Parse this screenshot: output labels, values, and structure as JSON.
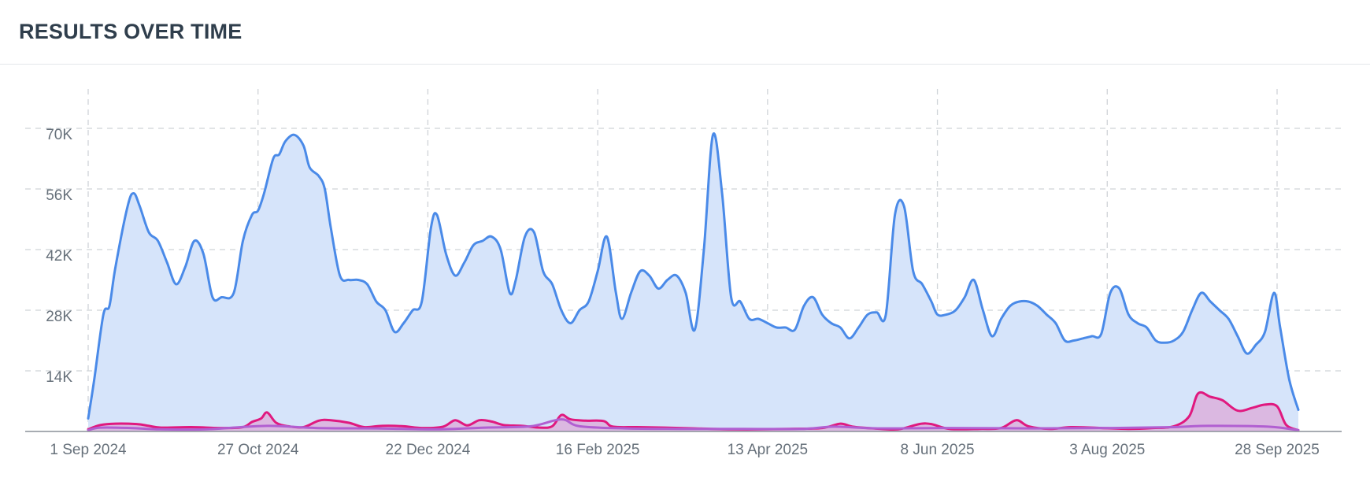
{
  "header": {
    "title": "RESULTS OVER TIME"
  },
  "colors": {
    "series_blue": "#4a8ae8",
    "series_blue_fill": "#d6e4fa",
    "series_pink": "#e0197f",
    "series_pink_fill": "#dcb3de",
    "series_purple": "#b15fd1",
    "grid": "#cfd3d8",
    "axis": "#8a9199",
    "tick_text": "#66707a"
  },
  "chart_data": {
    "type": "area",
    "title": "",
    "xlabel": "",
    "ylabel": "",
    "x_start": "2024-09-01",
    "x_end": "2025-10-10",
    "ylim": [
      0,
      75000
    ],
    "grid": true,
    "legend": "none",
    "x_ticks": [
      "1 Sep 2024",
      "27 Oct 2024",
      "22 Dec 2024",
      "16 Feb 2025",
      "13 Apr 2025",
      "8 Jun 2025",
      "3 Aug 2025",
      "28 Sep 2025"
    ],
    "y_ticks": [
      "14K",
      "28K",
      "42K",
      "56K",
      "70K"
    ],
    "y_tick_values": [
      14000,
      28000,
      42000,
      56000,
      70000
    ],
    "series": [
      {
        "color": "#4a8ae8",
        "fill": "#d6e4fa",
        "points": [
          [
            "2024-09-01",
            3000
          ],
          [
            "2024-09-03",
            12000
          ],
          [
            "2024-09-06",
            27000
          ],
          [
            "2024-09-08",
            29000
          ],
          [
            "2024-09-10",
            38000
          ],
          [
            "2024-09-14",
            52000
          ],
          [
            "2024-09-16",
            55000
          ],
          [
            "2024-09-18",
            52000
          ],
          [
            "2024-09-21",
            46000
          ],
          [
            "2024-09-24",
            44000
          ],
          [
            "2024-09-27",
            39000
          ],
          [
            "2024-09-30",
            34000
          ],
          [
            "2024-10-03",
            38000
          ],
          [
            "2024-10-06",
            44000
          ],
          [
            "2024-10-09",
            41000
          ],
          [
            "2024-10-12",
            31000
          ],
          [
            "2024-10-15",
            31000
          ],
          [
            "2024-10-19",
            32000
          ],
          [
            "2024-10-22",
            44000
          ],
          [
            "2024-10-25",
            50000
          ],
          [
            "2024-10-27",
            51000
          ],
          [
            "2024-10-29",
            55000
          ],
          [
            "2024-11-01",
            63000
          ],
          [
            "2024-11-03",
            64000
          ],
          [
            "2024-11-05",
            67000
          ],
          [
            "2024-11-08",
            68500
          ],
          [
            "2024-11-11",
            66000
          ],
          [
            "2024-11-13",
            61000
          ],
          [
            "2024-11-16",
            59000
          ],
          [
            "2024-11-18",
            56000
          ],
          [
            "2024-11-20",
            47000
          ],
          [
            "2024-11-23",
            36000
          ],
          [
            "2024-11-26",
            35000
          ],
          [
            "2024-11-29",
            35000
          ],
          [
            "2024-12-02",
            34000
          ],
          [
            "2024-12-05",
            30000
          ],
          [
            "2024-12-08",
            28000
          ],
          [
            "2024-12-11",
            23000
          ],
          [
            "2024-12-14",
            25000
          ],
          [
            "2024-12-17",
            28000
          ],
          [
            "2024-12-20",
            30000
          ],
          [
            "2024-12-23",
            47000
          ],
          [
            "2024-12-25",
            50000
          ],
          [
            "2024-12-28",
            41000
          ],
          [
            "2024-12-31",
            36000
          ],
          [
            "2025-01-03",
            39000
          ],
          [
            "2025-01-06",
            43000
          ],
          [
            "2025-01-09",
            44000
          ],
          [
            "2025-01-12",
            45000
          ],
          [
            "2025-01-15",
            42000
          ],
          [
            "2025-01-18",
            32000
          ],
          [
            "2025-01-20",
            35000
          ],
          [
            "2025-01-23",
            45000
          ],
          [
            "2025-01-26",
            46000
          ],
          [
            "2025-01-29",
            37000
          ],
          [
            "2025-02-01",
            34000
          ],
          [
            "2025-02-04",
            28000
          ],
          [
            "2025-02-07",
            25000
          ],
          [
            "2025-02-10",
            28000
          ],
          [
            "2025-02-13",
            30000
          ],
          [
            "2025-02-16",
            37000
          ],
          [
            "2025-02-19",
            45000
          ],
          [
            "2025-02-22",
            32000
          ],
          [
            "2025-02-24",
            26000
          ],
          [
            "2025-02-27",
            32000
          ],
          [
            "2025-03-02",
            37000
          ],
          [
            "2025-03-05",
            36000
          ],
          [
            "2025-03-08",
            33000
          ],
          [
            "2025-03-11",
            35000
          ],
          [
            "2025-03-14",
            36000
          ],
          [
            "2025-03-17",
            32000
          ],
          [
            "2025-03-20",
            23500
          ],
          [
            "2025-03-23",
            42000
          ],
          [
            "2025-03-26",
            68500
          ],
          [
            "2025-03-29",
            55000
          ],
          [
            "2025-04-01",
            31000
          ],
          [
            "2025-04-04",
            30000
          ],
          [
            "2025-04-07",
            26000
          ],
          [
            "2025-04-10",
            26000
          ],
          [
            "2025-04-13",
            25000
          ],
          [
            "2025-04-16",
            24000
          ],
          [
            "2025-04-19",
            24000
          ],
          [
            "2025-04-22",
            23500
          ],
          [
            "2025-04-25",
            29000
          ],
          [
            "2025-04-28",
            31000
          ],
          [
            "2025-05-01",
            27000
          ],
          [
            "2025-05-04",
            25000
          ],
          [
            "2025-05-07",
            24000
          ],
          [
            "2025-05-10",
            21500
          ],
          [
            "2025-05-13",
            24000
          ],
          [
            "2025-05-16",
            27000
          ],
          [
            "2025-05-19",
            27500
          ],
          [
            "2025-05-22",
            27000
          ],
          [
            "2025-05-25",
            50000
          ],
          [
            "2025-05-28",
            52000
          ],
          [
            "2025-05-31",
            37000
          ],
          [
            "2025-06-03",
            34000
          ],
          [
            "2025-06-06",
            30000
          ],
          [
            "2025-06-08",
            27000
          ],
          [
            "2025-06-11",
            27000
          ],
          [
            "2025-06-14",
            28000
          ],
          [
            "2025-06-17",
            31000
          ],
          [
            "2025-06-20",
            35000
          ],
          [
            "2025-06-23",
            28000
          ],
          [
            "2025-06-26",
            22000
          ],
          [
            "2025-06-29",
            26000
          ],
          [
            "2025-07-02",
            29000
          ],
          [
            "2025-07-05",
            30000
          ],
          [
            "2025-07-08",
            30000
          ],
          [
            "2025-07-11",
            29000
          ],
          [
            "2025-07-14",
            27000
          ],
          [
            "2025-07-17",
            25000
          ],
          [
            "2025-07-20",
            21000
          ],
          [
            "2025-07-23",
            21000
          ],
          [
            "2025-07-26",
            21500
          ],
          [
            "2025-07-29",
            22000
          ],
          [
            "2025-08-01",
            22500
          ],
          [
            "2025-08-04",
            32000
          ],
          [
            "2025-08-07",
            33000
          ],
          [
            "2025-08-10",
            27000
          ],
          [
            "2025-08-13",
            25000
          ],
          [
            "2025-08-16",
            24000
          ],
          [
            "2025-08-19",
            21000
          ],
          [
            "2025-08-22",
            20500
          ],
          [
            "2025-08-25",
            21000
          ],
          [
            "2025-08-28",
            23000
          ],
          [
            "2025-08-31",
            28000
          ],
          [
            "2025-09-03",
            32000
          ],
          [
            "2025-09-06",
            30000
          ],
          [
            "2025-09-09",
            28000
          ],
          [
            "2025-09-12",
            26000
          ],
          [
            "2025-09-15",
            22000
          ],
          [
            "2025-09-18",
            18000
          ],
          [
            "2025-09-21",
            20000
          ],
          [
            "2025-09-24",
            23000
          ],
          [
            "2025-09-27",
            32000
          ],
          [
            "2025-09-29",
            24000
          ],
          [
            "2025-10-02",
            12000
          ],
          [
            "2025-10-05",
            5000
          ]
        ]
      },
      {
        "color": "#e0197f",
        "fill": "#dcb3de",
        "points": [
          [
            "2024-09-01",
            500
          ],
          [
            "2024-09-05",
            1500
          ],
          [
            "2024-09-10",
            1800
          ],
          [
            "2024-09-17",
            1700
          ],
          [
            "2024-09-21",
            1300
          ],
          [
            "2024-09-25",
            900
          ],
          [
            "2024-10-05",
            1000
          ],
          [
            "2024-10-15",
            800
          ],
          [
            "2024-10-22",
            1000
          ],
          [
            "2024-10-25",
            2200
          ],
          [
            "2024-10-28",
            3000
          ],
          [
            "2024-10-30",
            4400
          ],
          [
            "2024-11-02",
            2000
          ],
          [
            "2024-11-06",
            1200
          ],
          [
            "2024-11-11",
            1000
          ],
          [
            "2024-11-16",
            2500
          ],
          [
            "2024-11-20",
            2600
          ],
          [
            "2024-11-26",
            2000
          ],
          [
            "2024-12-01",
            1000
          ],
          [
            "2024-12-07",
            1300
          ],
          [
            "2024-12-14",
            1200
          ],
          [
            "2024-12-20",
            800
          ],
          [
            "2024-12-27",
            1100
          ],
          [
            "2024-12-31",
            2600
          ],
          [
            "2025-01-04",
            1400
          ],
          [
            "2025-01-08",
            2600
          ],
          [
            "2025-01-12",
            2300
          ],
          [
            "2025-01-16",
            1500
          ],
          [
            "2025-01-22",
            1300
          ],
          [
            "2025-01-28",
            900
          ],
          [
            "2025-02-01",
            1200
          ],
          [
            "2025-02-04",
            3800
          ],
          [
            "2025-02-07",
            2800
          ],
          [
            "2025-02-12",
            2500
          ],
          [
            "2025-02-18",
            2400
          ],
          [
            "2025-02-21",
            1100
          ],
          [
            "2025-03-01",
            1000
          ],
          [
            "2025-03-10",
            900
          ],
          [
            "2025-03-20",
            700
          ],
          [
            "2025-04-01",
            500
          ],
          [
            "2025-04-10",
            500
          ],
          [
            "2025-04-20",
            600
          ],
          [
            "2025-05-01",
            800
          ],
          [
            "2025-05-07",
            1800
          ],
          [
            "2025-05-11",
            1100
          ],
          [
            "2025-05-18",
            700
          ],
          [
            "2025-05-26",
            500
          ],
          [
            "2025-06-02",
            1700
          ],
          [
            "2025-06-06",
            1700
          ],
          [
            "2025-06-12",
            600
          ],
          [
            "2025-06-22",
            600
          ],
          [
            "2025-06-29",
            800
          ],
          [
            "2025-07-04",
            2600
          ],
          [
            "2025-07-08",
            1200
          ],
          [
            "2025-07-15",
            600
          ],
          [
            "2025-07-22",
            1000
          ],
          [
            "2025-08-01",
            800
          ],
          [
            "2025-08-10",
            600
          ],
          [
            "2025-08-18",
            800
          ],
          [
            "2025-08-25",
            1200
          ],
          [
            "2025-08-30",
            3500
          ],
          [
            "2025-09-02",
            8800
          ],
          [
            "2025-09-06",
            8000
          ],
          [
            "2025-09-10",
            7200
          ],
          [
            "2025-09-15",
            4800
          ],
          [
            "2025-09-20",
            5500
          ],
          [
            "2025-09-24",
            6200
          ],
          [
            "2025-09-28",
            5800
          ],
          [
            "2025-10-01",
            1500
          ],
          [
            "2025-10-05",
            300
          ]
        ]
      },
      {
        "color": "#b15fd1",
        "fill": "none",
        "points": [
          [
            "2024-09-01",
            300
          ],
          [
            "2024-09-05",
            900
          ],
          [
            "2024-09-15",
            800
          ],
          [
            "2024-09-25",
            500
          ],
          [
            "2024-10-10",
            500
          ],
          [
            "2024-10-30",
            1300
          ],
          [
            "2024-11-15",
            800
          ],
          [
            "2024-12-05",
            700
          ],
          [
            "2024-12-25",
            500
          ],
          [
            "2025-01-10",
            900
          ],
          [
            "2025-01-25",
            1200
          ],
          [
            "2025-02-04",
            2800
          ],
          [
            "2025-02-10",
            1200
          ],
          [
            "2025-02-25",
            700
          ],
          [
            "2025-03-15",
            600
          ],
          [
            "2025-04-05",
            600
          ],
          [
            "2025-04-25",
            600
          ],
          [
            "2025-05-05",
            1100
          ],
          [
            "2025-05-20",
            700
          ],
          [
            "2025-06-10",
            800
          ],
          [
            "2025-07-10",
            700
          ],
          [
            "2025-08-05",
            800
          ],
          [
            "2025-08-25",
            1000
          ],
          [
            "2025-09-05",
            1300
          ],
          [
            "2025-09-25",
            1100
          ],
          [
            "2025-10-05",
            300
          ]
        ]
      }
    ]
  }
}
